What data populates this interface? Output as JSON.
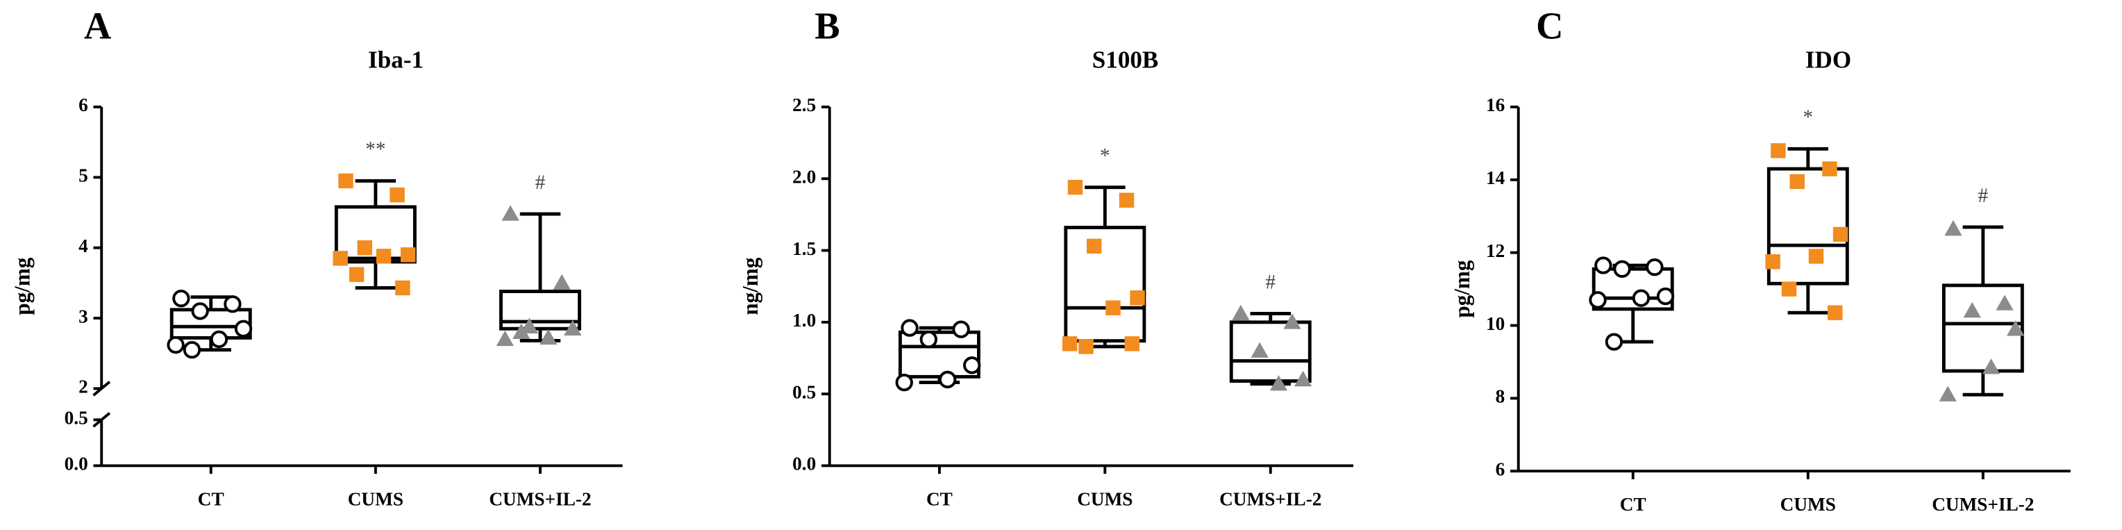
{
  "chart_data": [
    {
      "type": "box",
      "panel_label": "A",
      "title": "Iba-1",
      "y_label": "pg/mg",
      "categories": [
        "CT",
        "CUMS",
        "CUMS+IL-2"
      ],
      "ylim": [
        0,
        6
      ],
      "ybreak": [
        0.5,
        2
      ],
      "yticks": [
        {
          "value": 0,
          "label": "0.0"
        },
        0.5,
        2,
        3,
        4,
        5,
        6
      ],
      "boxes": [
        {
          "min": 2.55,
          "q1": 2.72,
          "median": 2.88,
          "q3": 3.12,
          "max": 3.3,
          "marker": "circle",
          "color": "#000000",
          "points": [
            3.28,
            3.2,
            3.1,
            2.85,
            2.7,
            2.62,
            2.55
          ]
        },
        {
          "min": 3.43,
          "q1": 3.8,
          "median": 3.85,
          "q3": 4.58,
          "max": 4.95,
          "marker": "square",
          "color": "#f28c1e",
          "annotation": "**",
          "points": [
            4.95,
            4.75,
            4.0,
            3.9,
            3.88,
            3.85,
            3.62,
            3.43
          ]
        },
        {
          "min": 2.68,
          "q1": 2.85,
          "median": 2.95,
          "q3": 3.38,
          "max": 4.48,
          "marker": "triangle",
          "color": "#8c8c8c",
          "annotation": "#",
          "points": [
            4.48,
            3.5,
            2.88,
            2.85,
            2.72,
            2.7,
            2.8
          ]
        }
      ]
    },
    {
      "type": "box",
      "panel_label": "B",
      "title": "S100B",
      "y_label": "ng/mg",
      "categories": [
        "CT",
        "CUMS",
        "CUMS+IL-2"
      ],
      "ylim": [
        0,
        2.5
      ],
      "yticks": [
        {
          "value": 0,
          "label": "0.0"
        },
        0.5,
        {
          "value": 1,
          "label": "1.0"
        },
        1.5,
        {
          "value": 2,
          "label": "2.0"
        },
        2.5
      ],
      "boxes": [
        {
          "min": 0.58,
          "q1": 0.62,
          "median": 0.83,
          "q3": 0.93,
          "max": 0.96,
          "marker": "circle",
          "color": "#000000",
          "points": [
            0.96,
            0.95,
            0.88,
            0.7,
            0.6,
            0.58
          ]
        },
        {
          "min": 0.83,
          "q1": 0.87,
          "median": 1.1,
          "q3": 1.66,
          "max": 1.94,
          "marker": "square",
          "color": "#f28c1e",
          "annotation": "*",
          "points": [
            1.94,
            1.85,
            1.53,
            1.17,
            1.1,
            0.85,
            0.83,
            0.85
          ]
        },
        {
          "min": 0.57,
          "q1": 0.59,
          "median": 0.73,
          "q3": 1.0,
          "max": 1.06,
          "marker": "triangle",
          "color": "#8c8c8c",
          "annotation": "#",
          "points": [
            1.06,
            1.0,
            0.8,
            0.6,
            0.57
          ]
        }
      ]
    },
    {
      "type": "box",
      "panel_label": "C",
      "title": "IDO",
      "y_label": "pg/mg",
      "categories": [
        "CT",
        "CUMS",
        "CUMS+IL-2"
      ],
      "ylim": [
        6,
        16
      ],
      "yticks": [
        6,
        8,
        10,
        12,
        14,
        16
      ],
      "boxes": [
        {
          "min": 9.55,
          "q1": 10.45,
          "median": 10.75,
          "q3": 11.55,
          "max": 11.65,
          "marker": "circle",
          "color": "#000000",
          "points": [
            11.65,
            11.6,
            11.55,
            10.8,
            10.75,
            10.7,
            9.55
          ]
        },
        {
          "min": 10.35,
          "q1": 11.15,
          "median": 12.2,
          "q3": 14.3,
          "max": 14.85,
          "marker": "square",
          "color": "#f28c1e",
          "annotation": "*",
          "points": [
            14.8,
            14.3,
            13.95,
            12.5,
            11.9,
            11.75,
            11.0,
            10.35
          ]
        },
        {
          "min": 8.1,
          "q1": 8.75,
          "median": 10.05,
          "q3": 11.1,
          "max": 12.7,
          "marker": "triangle",
          "color": "#8c8c8c",
          "annotation": "#",
          "points": [
            12.65,
            10.6,
            10.4,
            9.9,
            8.85,
            8.1
          ]
        }
      ]
    }
  ]
}
